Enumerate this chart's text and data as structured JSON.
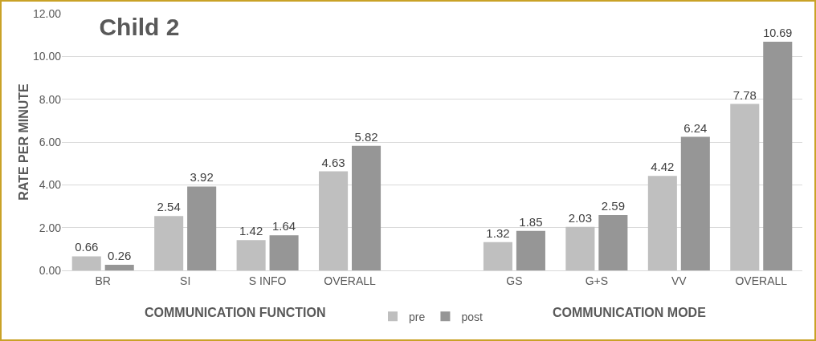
{
  "chart_data": {
    "type": "bar",
    "title": "Child 2",
    "ylabel": "RATE PER MINUTE",
    "categories": [
      "BR",
      "SI",
      "S INFO",
      "OVERALL",
      null,
      "GS",
      "G+S",
      "VV",
      "OVERALL"
    ],
    "series": [
      {
        "name": "pre",
        "color": "#bfbfbf",
        "values": [
          0.66,
          2.54,
          1.42,
          4.63,
          null,
          1.32,
          2.03,
          4.42,
          7.78
        ]
      },
      {
        "name": "post",
        "color": "#969696",
        "values": [
          0.26,
          3.92,
          1.64,
          5.82,
          null,
          1.85,
          2.59,
          6.24,
          10.69
        ]
      }
    ],
    "annotations": [
      "COMMUNICATION FUNCTION",
      "COMMUNICATION MODE"
    ],
    "ylim": [
      0,
      12
    ],
    "yticks": [
      {
        "value": 0,
        "label": "0.00"
      },
      {
        "value": 2,
        "label": "2.00"
      },
      {
        "value": 4,
        "label": "4.00"
      },
      {
        "value": 6,
        "label": "6.00"
      },
      {
        "value": 8,
        "label": "8.00"
      },
      {
        "value": 10,
        "label": "10.00"
      },
      {
        "value": 12,
        "label": "12.00"
      }
    ],
    "grid": "y",
    "legend": "bottom",
    "data_labels": true
  }
}
